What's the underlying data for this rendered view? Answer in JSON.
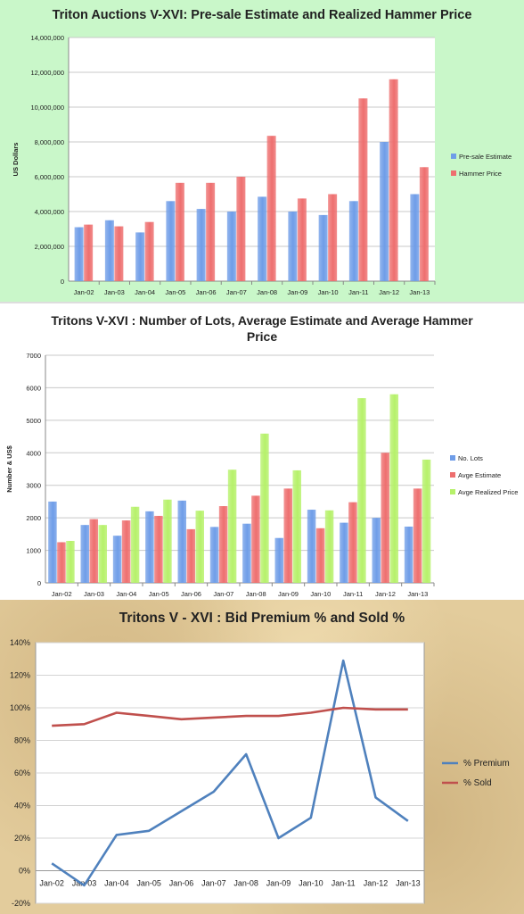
{
  "chart_data": [
    {
      "type": "bar",
      "title": "Triton Auctions V-XVI: Pre-sale Estimate and Realized Hammer Price",
      "ylabel": "US Dollars",
      "xlabel": "",
      "ylim": [
        0,
        14000000
      ],
      "yticks": [
        "0",
        "2,000,000",
        "4,000,000",
        "6,000,000",
        "8,000,000",
        "10,000,000",
        "12,000,000",
        "14,000,000"
      ],
      "categories": [
        "Jan-02",
        "Jan-03",
        "Jan-04",
        "Jan-05",
        "Jan-06",
        "Jan-07",
        "Jan-08",
        "Jan-09",
        "Jan-10",
        "Jan-11",
        "Jan-12",
        "Jan-13"
      ],
      "series": [
        {
          "name": "Pre-sale Estimate",
          "color": "#6f9de8",
          "values": [
            3100000,
            3500000,
            2800000,
            4600000,
            4150000,
            4000000,
            4850000,
            4000000,
            3800000,
            4600000,
            8000000,
            5000000
          ]
        },
        {
          "name": "Hammer Price",
          "color": "#ee6f6f",
          "values": [
            3250000,
            3150000,
            3400000,
            5650000,
            5650000,
            6000000,
            8350000,
            4750000,
            5000000,
            10500000,
            11600000,
            6550000
          ]
        }
      ],
      "grid": true,
      "legend": "right"
    },
    {
      "type": "bar",
      "title": "Tritons V-XVI : Number of Lots, Average Estimate and Average Hammer Price",
      "ylabel": "Number & US$",
      "xlabel": "",
      "ylim": [
        0,
        7000
      ],
      "yticks": [
        "0",
        "1000",
        "2000",
        "3000",
        "4000",
        "5000",
        "6000",
        "7000"
      ],
      "categories": [
        "Jan-02",
        "Jan-03",
        "Jan-04",
        "Jan-05",
        "Jan-06",
        "Jan-07",
        "Jan-08",
        "Jan-09",
        "Jan-10",
        "Jan-11",
        "Jan-12",
        "Jan-13"
      ],
      "series": [
        {
          "name": "No. Lots",
          "color": "#6f9de8",
          "values": [
            2500,
            1780,
            1450,
            2200,
            2530,
            1720,
            1820,
            1380,
            2250,
            1850,
            2000,
            1730
          ]
        },
        {
          "name": "Avge Estimate",
          "color": "#ee6f6f",
          "values": [
            1250,
            1960,
            1920,
            2060,
            1650,
            2360,
            2680,
            2900,
            1680,
            2480,
            4000,
            2900
          ]
        },
        {
          "name": "Avge Realized Price",
          "color": "#b6f16a",
          "values": [
            1290,
            1780,
            2340,
            2560,
            2220,
            3480,
            4590,
            3460,
            2230,
            5680,
            5800,
            3790
          ]
        }
      ],
      "grid": true,
      "legend": "right"
    },
    {
      "type": "line",
      "title": "Tritons V - XVI : Bid Premium % and  Sold %",
      "xlabel": "",
      "ylabel": "",
      "ylim": [
        -20,
        140
      ],
      "yticks": [
        "-20%",
        "0%",
        "20%",
        "40%",
        "60%",
        "80%",
        "100%",
        "120%",
        "140%"
      ],
      "categories": [
        "Jan-02",
        "Jan-03",
        "Jan-04",
        "Jan-05",
        "Jan-06",
        "Jan-07",
        "Jan-08",
        "Jan-09",
        "Jan-10",
        "Jan-11",
        "Jan-12",
        "Jan-13"
      ],
      "series": [
        {
          "name": "% Premium",
          "color": "#4f81bd",
          "values": [
            4.5,
            -9,
            22,
            24.5,
            36.5,
            48.5,
            71.5,
            20,
            32.5,
            129,
            45,
            30.5
          ]
        },
        {
          "name": "% Sold",
          "color": "#c0504d",
          "values": [
            89,
            90,
            97,
            95,
            93,
            94,
            95,
            95,
            97,
            100,
            99,
            99
          ]
        }
      ],
      "grid": true,
      "legend": "right"
    }
  ]
}
